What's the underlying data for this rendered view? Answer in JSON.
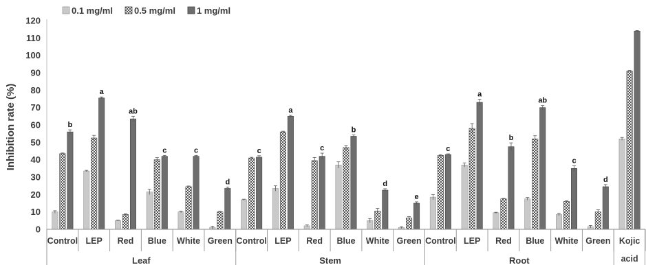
{
  "chart_data": {
    "type": "bar",
    "title": "",
    "ylabel": "Inhibition rate (%)",
    "ylim": [
      0,
      120
    ],
    "ytick_step": 10,
    "grid": false,
    "legend_position": "top-left",
    "categories": [
      "Control",
      "LEP",
      "Red",
      "Blue",
      "White",
      "Green",
      "Control",
      "LEP",
      "Red",
      "Blue",
      "White",
      "Green",
      "Control",
      "LEP",
      "Red",
      "Blue",
      "White",
      "Green",
      "Kojic acid"
    ],
    "category_lines": [
      [
        "Control"
      ],
      [
        "LEP"
      ],
      [
        "Red"
      ],
      [
        "Blue"
      ],
      [
        "White"
      ],
      [
        "Green"
      ],
      [
        "Control"
      ],
      [
        "LEP"
      ],
      [
        "Red"
      ],
      [
        "Blue"
      ],
      [
        "White"
      ],
      [
        "Green"
      ],
      [
        "Control"
      ],
      [
        "LEP"
      ],
      [
        "Red"
      ],
      [
        "Blue"
      ],
      [
        "White"
      ],
      [
        "Green"
      ],
      [
        "Kojic",
        "acid"
      ]
    ],
    "groups": [
      {
        "label": "Leaf",
        "count": 6
      },
      {
        "label": "Stem",
        "count": 6
      },
      {
        "label": "Root",
        "count": 6
      },
      {
        "label": "",
        "count": 1
      }
    ],
    "series": [
      {
        "name": "0.1 mg/ml",
        "pattern": "light",
        "color": "#c9c9c9",
        "values": [
          10,
          33.5,
          5,
          21.5,
          10,
          1,
          17,
          23.5,
          2,
          37,
          5,
          1,
          18.5,
          37,
          9.5,
          17.5,
          8.5,
          1.5,
          52
        ],
        "errors": [
          0.7,
          0.4,
          0.3,
          1.5,
          0.5,
          0.8,
          0.3,
          1.5,
          0.5,
          1.8,
          1.2,
          0.5,
          1.5,
          1.2,
          0.3,
          0.8,
          0.8,
          0.7,
          0.8
        ]
      },
      {
        "name": "0.5 mg/ml",
        "pattern": "checker",
        "color": "#808080",
        "values": [
          43.5,
          52.5,
          8.5,
          40,
          24.5,
          10,
          41,
          56,
          39.5,
          47,
          10.5,
          6.5,
          42.5,
          58,
          17.5,
          52,
          16,
          10,
          91
        ],
        "errors": [
          0.4,
          1.5,
          0.4,
          1.2,
          0.4,
          0.4,
          0.4,
          0.4,
          1.8,
          1.2,
          1.5,
          0.8,
          0.4,
          2.8,
          0.3,
          1.8,
          0.4,
          1.2,
          0.4
        ]
      },
      {
        "name": "1 mg/ml",
        "pattern": "dark",
        "color": "#6e6e6e",
        "values": [
          56,
          75.5,
          63.5,
          42,
          42,
          23.5,
          41.5,
          65,
          42,
          53.5,
          22.5,
          15,
          43,
          73,
          47.5,
          70,
          35,
          24.5,
          114
        ],
        "errors": [
          1.2,
          0.6,
          1.5,
          0.5,
          0.5,
          0.8,
          0.8,
          0.5,
          1.8,
          0.8,
          0.8,
          0.8,
          0.4,
          1.8,
          2.2,
          1.2,
          1.5,
          1.2,
          0.3
        ],
        "labels": [
          "b",
          "a",
          "ab",
          "c",
          "c",
          "d",
          "c",
          "a",
          "c",
          "b",
          "d",
          "e",
          "c",
          "a",
          "b",
          "ab",
          "c",
          "d",
          ""
        ]
      }
    ]
  }
}
